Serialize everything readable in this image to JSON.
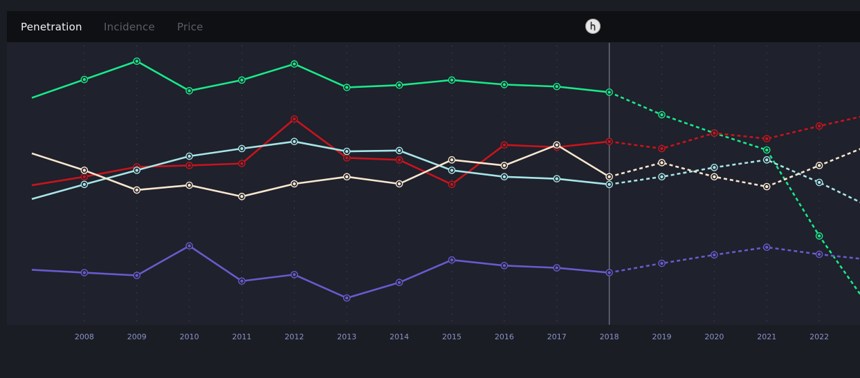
{
  "tabs": [
    {
      "label": "Penetration",
      "active": true
    },
    {
      "label": "Incidence",
      "active": false
    },
    {
      "label": "Price",
      "active": false
    }
  ],
  "badge_icon": "hand-pointer-icon",
  "colors": {
    "background": "#1b1d24",
    "panel": "#1f212c",
    "tabbar": "#0f1014",
    "tick": "#8a93c9",
    "divider": "#6b6e78"
  },
  "chart_data": {
    "type": "line",
    "title": "",
    "xlabel": "",
    "ylabel": "",
    "x": [
      "2007",
      "2008",
      "2009",
      "2010",
      "2011",
      "2012",
      "2013",
      "2014",
      "2015",
      "2016",
      "2017",
      "2018",
      "2019",
      "2020",
      "2021",
      "2022",
      "2023"
    ],
    "tick_labels": [
      "2008",
      "2009",
      "2010",
      "2011",
      "2012",
      "2013",
      "2014",
      "2015",
      "2016",
      "2017",
      "2018",
      "2019",
      "2020",
      "2021",
      "2022"
    ],
    "divider_at": "2018",
    "forecast_from": "2018",
    "ylim": [
      0,
      100
    ],
    "grid": "vertical dotted",
    "legend": "none",
    "series": [
      {
        "color": "#19e98a",
        "values": [
          80.5,
          87.0,
          93.5,
          83.0,
          86.8,
          92.5,
          84.2,
          85.0,
          86.8,
          85.2,
          84.5,
          82.5,
          74.5,
          68.0,
          62.0,
          31.5,
          5.0
        ]
      },
      {
        "color": "#c8141c",
        "values": [
          49.5,
          52.5,
          56.0,
          56.5,
          57.2,
          73.0,
          59.2,
          58.5,
          49.8,
          63.8,
          63.0,
          65.0,
          62.5,
          68.0,
          66.0,
          70.5,
          74.7
        ]
      },
      {
        "color": "#a7e6e8",
        "values": [
          44.6,
          49.8,
          54.8,
          59.8,
          62.5,
          65.0,
          61.5,
          61.8,
          54.8,
          52.5,
          51.8,
          49.8,
          52.5,
          55.8,
          58.5,
          50.5,
          41.5
        ]
      },
      {
        "color": "#f8e7cf",
        "values": [
          60.8,
          54.8,
          47.8,
          49.5,
          45.5,
          50.0,
          52.5,
          50.0,
          58.5,
          56.5,
          63.8,
          52.5,
          57.5,
          52.5,
          49.0,
          56.5,
          64.0
        ]
      },
      {
        "color": "#6a5acd",
        "values": [
          19.5,
          18.5,
          17.5,
          28.0,
          15.5,
          17.8,
          9.5,
          15.0,
          23.0,
          21.0,
          20.2,
          18.5,
          21.8,
          24.8,
          27.5,
          25.0,
          23.0
        ]
      }
    ]
  }
}
